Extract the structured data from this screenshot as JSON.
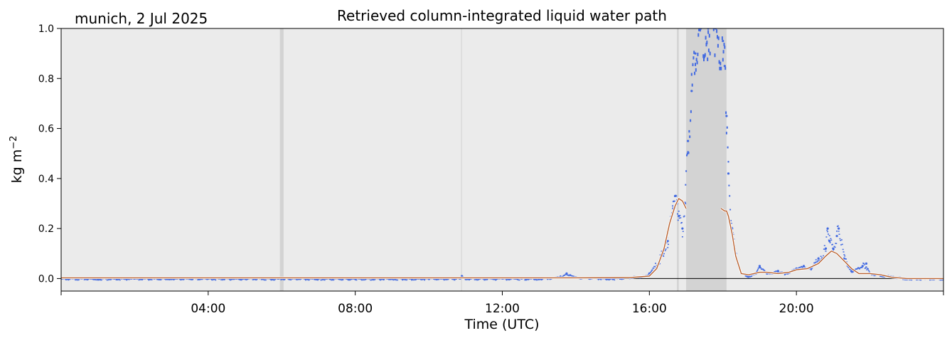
{
  "chart_data": {
    "type": "line",
    "title": "Retrieved column-integrated liquid water path",
    "subtitle": "munich, 2 Jul 2025",
    "xlabel": "Time (UTC)",
    "ylabel": "kg m",
    "ylabel_superscript": "−2",
    "xlim": [
      0,
      24
    ],
    "ylim": [
      -0.05,
      1.0
    ],
    "xticks": [
      {
        "value": 4,
        "label": "04:00"
      },
      {
        "value": 8,
        "label": "08:00"
      },
      {
        "value": 12,
        "label": "12:00"
      },
      {
        "value": 16,
        "label": "16:00"
      },
      {
        "value": 20,
        "label": "20:00"
      }
    ],
    "yticks": [
      {
        "value": 0.0,
        "label": "0.0"
      },
      {
        "value": 0.2,
        "label": "0.2"
      },
      {
        "value": 0.4,
        "label": "0.4"
      },
      {
        "value": 0.6,
        "label": "0.6"
      },
      {
        "value": 0.8,
        "label": "0.8"
      },
      {
        "value": 1.0,
        "label": "1.0"
      }
    ],
    "grid": false,
    "background_color": "#ebebeb",
    "shaded_intervals": [
      {
        "start": 5.95,
        "end": 6.05,
        "color": "#d3d3d3"
      },
      {
        "start": 10.88,
        "end": 10.9,
        "color": "#d3d3d3"
      },
      {
        "start": 16.75,
        "end": 16.8,
        "color": "#d3d3d3"
      },
      {
        "start": 17.0,
        "end": 18.1,
        "color": "#d3d3d3"
      }
    ],
    "reference_line": {
      "y": 0.0,
      "color": "#000000"
    },
    "series": [
      {
        "style": "points",
        "color": "#4169e1",
        "x": [
          0.0,
          1.0,
          2.0,
          3.0,
          4.0,
          5.0,
          5.9,
          6.2,
          7.0,
          8.0,
          9.0,
          10.0,
          10.85,
          10.9,
          11.0,
          12.0,
          13.0,
          13.5,
          13.75,
          14.0,
          15.0,
          15.9,
          16.0,
          16.3,
          16.5,
          16.65,
          16.7,
          16.75,
          16.8,
          16.9,
          16.97,
          17.05,
          17.15,
          17.25,
          17.4,
          17.6,
          17.8,
          18.0,
          18.05,
          18.1,
          18.15,
          18.25,
          18.35,
          18.5,
          18.7,
          18.9,
          19.0,
          19.2,
          19.5,
          19.7,
          20.0,
          20.2,
          20.4,
          20.6,
          20.8,
          20.85,
          20.9,
          21.0,
          21.1,
          21.15,
          21.3,
          21.5,
          21.8,
          21.9,
          22.0,
          22.5,
          23.0,
          23.5,
          24.0
        ],
        "values": [
          0.0,
          0.0,
          0.0,
          0.0,
          0.0,
          0.0,
          0.0,
          0.0,
          0.0,
          0.0,
          0.0,
          0.0,
          0.0,
          0.01,
          0.0,
          0.0,
          0.0,
          0.005,
          0.02,
          0.005,
          0.0,
          0.01,
          0.02,
          0.08,
          0.15,
          0.28,
          0.33,
          0.3,
          0.25,
          0.2,
          0.3,
          0.55,
          0.75,
          0.9,
          1.0,
          1.0,
          1.0,
          0.95,
          0.85,
          0.65,
          0.42,
          0.2,
          0.1,
          0.02,
          0.01,
          0.02,
          0.05,
          0.02,
          0.03,
          0.02,
          0.04,
          0.05,
          0.04,
          0.08,
          0.12,
          0.2,
          0.15,
          0.12,
          0.17,
          0.2,
          0.08,
          0.03,
          0.05,
          0.06,
          0.02,
          0.01,
          0.0,
          0.0,
          0.0
        ]
      },
      {
        "style": "line",
        "color": "#b8602e",
        "segments": [
          {
            "x": [
              0.0,
              2.0,
              4.0,
              6.0,
              8.0,
              10.0,
              12.0,
              14.0,
              15.5,
              16.0,
              16.2,
              16.4,
              16.55,
              16.7,
              16.8,
              16.9,
              17.0
            ],
            "values": [
              0.003,
              0.003,
              0.003,
              0.003,
              0.003,
              0.003,
              0.003,
              0.003,
              0.004,
              0.01,
              0.04,
              0.12,
              0.22,
              0.29,
              0.32,
              0.31,
              0.28
            ]
          },
          {
            "x": [
              17.95,
              18.0,
              18.05,
              18.1,
              18.15,
              18.25,
              18.35,
              18.5,
              18.7,
              19.0,
              19.2,
              19.5,
              19.8,
              20.0,
              20.3,
              20.6,
              20.8,
              20.95,
              21.1,
              21.3,
              21.5,
              21.7,
              22.0,
              22.3,
              22.6,
              23.0,
              23.5,
              24.0
            ],
            "values": [
              0.28,
              0.275,
              0.27,
              0.27,
              0.25,
              0.18,
              0.09,
              0.02,
              0.015,
              0.025,
              0.025,
              0.02,
              0.025,
              0.035,
              0.04,
              0.06,
              0.09,
              0.11,
              0.1,
              0.07,
              0.04,
              0.02,
              0.02,
              0.015,
              0.005,
              0.0,
              0.0,
              0.0
            ]
          }
        ]
      }
    ]
  }
}
